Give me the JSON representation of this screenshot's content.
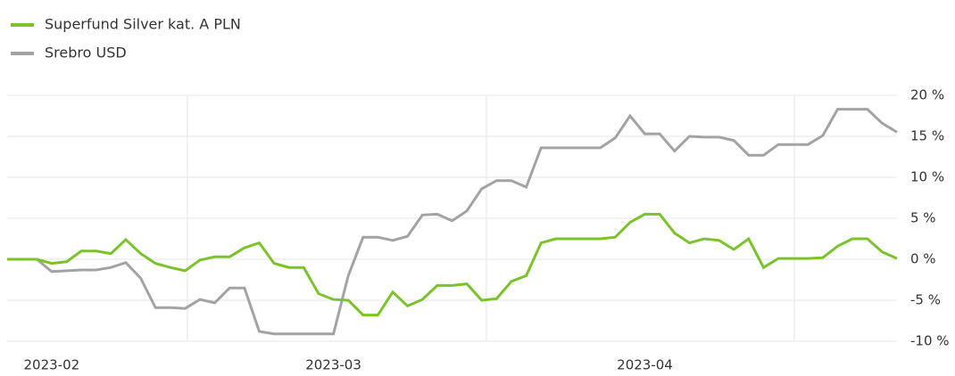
{
  "chart_data": {
    "type": "line",
    "categories": [
      null,
      null,
      null,
      "2023-02",
      null,
      null,
      null,
      null,
      null,
      null,
      null,
      null,
      null,
      null,
      null,
      null,
      null,
      null,
      null,
      null,
      null,
      null,
      "2023-03",
      null,
      null,
      null,
      null,
      null,
      null,
      null,
      null,
      null,
      null,
      null,
      null,
      null,
      null,
      null,
      null,
      null,
      null,
      null,
      null,
      "2023-04",
      null,
      null,
      null,
      null,
      null,
      null,
      null,
      null,
      null,
      null,
      null,
      null,
      null,
      null,
      null,
      null,
      null
    ],
    "series": [
      {
        "name": "Superfund Silver kat. A PLN",
        "color": "#7cc22a",
        "values": [
          0,
          0,
          0,
          -0.5,
          -0.3,
          1,
          1,
          0.7,
          2.4,
          0.7,
          -0.5,
          -1,
          -1.4,
          -0.1,
          0.3,
          0.3,
          1.4,
          2,
          -0.5,
          -1,
          -1,
          -4.2,
          -4.9,
          -5,
          -6.8,
          -6.8,
          -4,
          -5.7,
          -4.9,
          -3.2,
          -3.2,
          -3,
          -5,
          -4.8,
          -2.7,
          -2,
          2,
          2.5,
          2.5,
          2.5,
          2.5,
          2.7,
          4.5,
          5.5,
          5.5,
          3.2,
          2,
          2.5,
          2.3,
          1.2,
          2.5,
          -1,
          0.1,
          0.1,
          0.1,
          0.2,
          1.6,
          2.5,
          2.5,
          0.9,
          0.1
        ]
      },
      {
        "name": "Srebro USD",
        "color": "#a3a3a3",
        "values": [
          0,
          0,
          0,
          -1.5,
          -1.4,
          -1.3,
          -1.3,
          -1,
          -0.4,
          -2.3,
          -5.9,
          -5.9,
          -6,
          -4.9,
          -5.3,
          -3.5,
          -3.5,
          -8.8,
          -9.1,
          -9.1,
          -9.1,
          -9.1,
          -9.1,
          -2,
          2.7,
          2.7,
          2.3,
          2.8,
          5.4,
          5.5,
          4.7,
          5.9,
          8.6,
          9.6,
          9.6,
          8.8,
          13.6,
          13.6,
          13.6,
          13.6,
          13.6,
          14.8,
          17.5,
          15.3,
          15.3,
          13.2,
          15,
          14.9,
          14.9,
          14.5,
          12.7,
          12.7,
          14,
          14,
          14,
          15.1,
          18.3,
          18.3,
          18.3,
          16.6,
          15.5
        ]
      }
    ],
    "ylim": [
      -10,
      20
    ],
    "yticks": [
      {
        "value": -10,
        "label": "-10 %"
      },
      {
        "value": -5,
        "label": "-5 %"
      },
      {
        "value": 0,
        "label": "0 %"
      },
      {
        "value": 5,
        "label": "5 %"
      },
      {
        "value": 10,
        "label": "10 %"
      },
      {
        "value": 15,
        "label": "15 %"
      },
      {
        "value": 20,
        "label": "20 %"
      }
    ],
    "grid": true,
    "legend": "top-left"
  }
}
